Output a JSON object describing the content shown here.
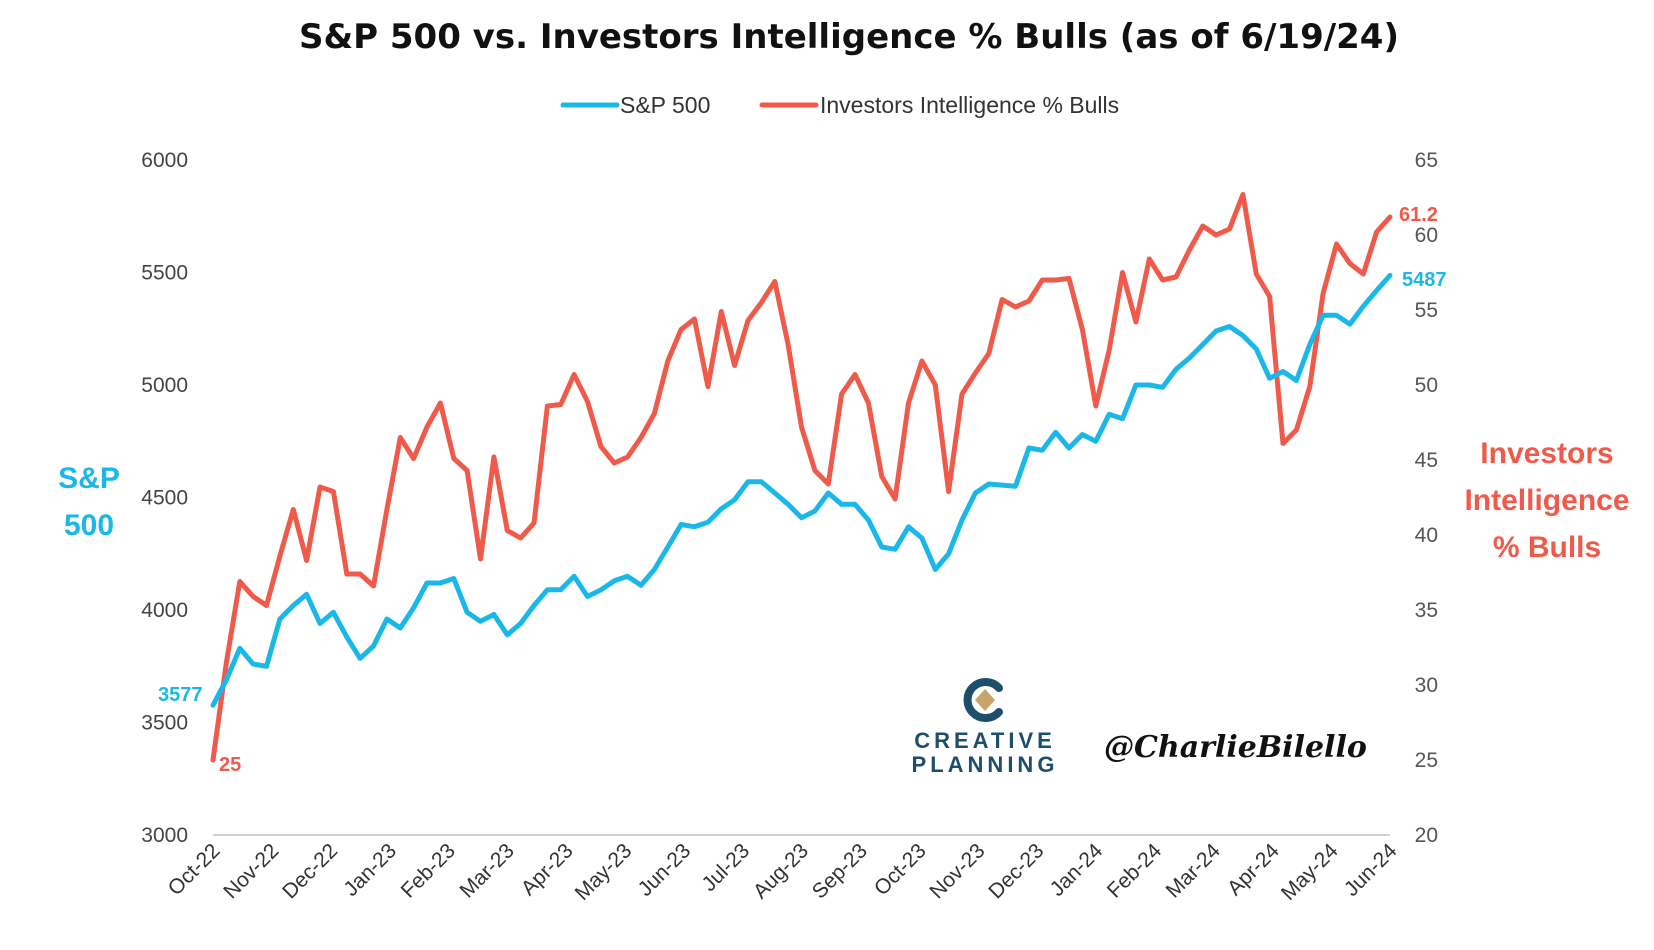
{
  "chart_data": {
    "type": "line",
    "title": "S&P 500 vs. Investors Intelligence % Bulls (as of 6/19/24)",
    "y_left_label_lines": [
      "S&P",
      "500"
    ],
    "y_right_label_lines": [
      "Investors",
      "Intelligence",
      "% Bulls"
    ],
    "y_left_lim": [
      3000,
      6000
    ],
    "y_left_ticks": [
      "3000",
      "3500",
      "4000",
      "4500",
      "5000",
      "5500",
      "6000"
    ],
    "y_right_lim": [
      20,
      65
    ],
    "y_right_ticks": [
      "20",
      "25",
      "30",
      "35",
      "40",
      "45",
      "50",
      "55",
      "60",
      "65"
    ],
    "x_ticks": [
      "Oct-22",
      "Nov-22",
      "Dec-22",
      "Jan-23",
      "Feb-23",
      "Mar-23",
      "Apr-23",
      "May-23",
      "Jun-23",
      "Jul-23",
      "Aug-23",
      "Sep-23",
      "Oct-23",
      "Nov-23",
      "Dec-23",
      "Jan-24",
      "Feb-24",
      "Mar-24",
      "Apr-24",
      "May-24",
      "Jun-24"
    ],
    "grid": false,
    "legend_position": "top-center",
    "series": [
      {
        "name": "S&P 500",
        "axis": "left",
        "color": "#1ab8e8",
        "end_labels": {
          "first": "3577",
          "last": "5487"
        },
        "values": [
          3577,
          3690,
          3830,
          3760,
          3750,
          3960,
          4020,
          4070,
          3940,
          3990,
          3880,
          3785,
          3840,
          3960,
          3920,
          4010,
          4120,
          4120,
          4140,
          3990,
          3950,
          3980,
          3890,
          3940,
          4020,
          4090,
          4090,
          4150,
          4060,
          4090,
          4130,
          4150,
          4110,
          4180,
          4280,
          4380,
          4370,
          4390,
          4450,
          4490,
          4570,
          4570,
          4520,
          4470,
          4410,
          4440,
          4520,
          4470,
          4470,
          4400,
          4280,
          4270,
          4370,
          4320,
          4180,
          4250,
          4400,
          4520,
          4560,
          4555,
          4550,
          4720,
          4710,
          4790,
          4720,
          4780,
          4750,
          4870,
          4850,
          5000,
          5000,
          4990,
          5070,
          5120,
          5180,
          5240,
          5260,
          5220,
          5160,
          5030,
          5060,
          5020,
          5180,
          5310,
          5310,
          5270,
          5350,
          5420,
          5487
        ]
      },
      {
        "name": "Investors Intelligence % Bulls",
        "axis": "right",
        "color": "#f05a4b",
        "end_labels": {
          "first": "25",
          "last": "61.2"
        },
        "values": [
          25,
          31.5,
          36.9,
          35.9,
          35.3,
          38.6,
          41.7,
          38.3,
          43.2,
          42.9,
          37.4,
          37.4,
          36.6,
          41.7,
          46.5,
          45.1,
          47.2,
          48.8,
          45.1,
          44.3,
          38.4,
          45.2,
          40.3,
          39.8,
          40.8,
          48.6,
          48.7,
          50.7,
          48.9,
          45.9,
          44.8,
          45.2,
          46.5,
          48.1,
          51.6,
          53.7,
          54.4,
          49.9,
          54.9,
          51.3,
          54.3,
          55.5,
          56.9,
          52.7,
          47.2,
          44.3,
          43.4,
          49.4,
          50.7,
          48.8,
          43.9,
          42.4,
          48.8,
          51.6,
          50.0,
          42.9,
          49.4,
          50.8,
          52.1,
          55.7,
          55.2,
          55.6,
          57.0,
          57.0,
          57.1,
          53.7,
          48.6,
          52.3,
          57.5,
          54.2,
          58.4,
          57.0,
          57.2,
          59.0,
          60.6,
          60.0,
          60.4,
          62.7,
          57.4,
          55.9,
          46.1,
          47.0,
          49.9,
          56.1,
          59.4,
          58.1,
          57.4,
          60.2,
          61.2
        ]
      }
    ]
  },
  "watermark": {
    "brand_lines": [
      "CREATIVE",
      "PLANNING"
    ],
    "brand_icon": "creative-planning-logo-icon",
    "handle": "@CharlieBilello"
  }
}
